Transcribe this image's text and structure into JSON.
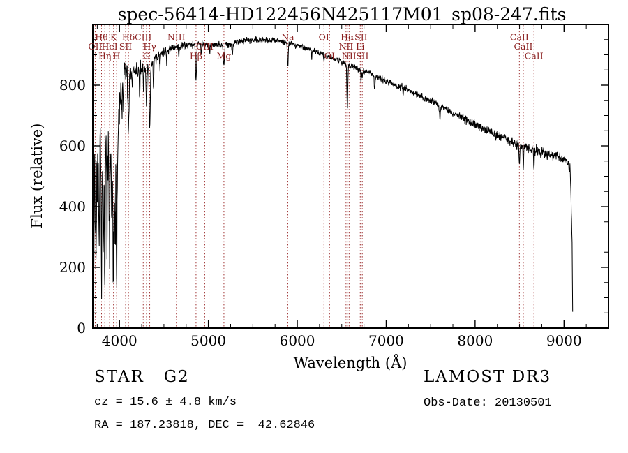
{
  "annotations": {
    "class_label": "STAR   G2",
    "survey": "LAMOST DR3",
    "cz": "cz = 15.6 ± 4.8 km/s",
    "obs_date": "Obs-Date: 20130501",
    "ra_dec": "RA = 187.23818, DEC =  42.62846"
  },
  "colors": {
    "background": "#ffffff",
    "spectrum": "#000000",
    "axis": "#000000",
    "line_marker": "#9b2b2b",
    "line_label": "#8b2020"
  },
  "chart_data": {
    "type": "line",
    "title": "spec-56414-HD122456N425117M01_sp08-247.fits",
    "xlabel": "Wavelength (Å)",
    "ylabel": "Flux (relative)",
    "xlim": [
      3700,
      9500
    ],
    "ylim": [
      0,
      1000
    ],
    "x_ticks": [
      4000,
      5000,
      6000,
      7000,
      8000,
      9000
    ],
    "y_ticks": [
      0,
      200,
      400,
      600,
      800
    ],
    "x_minor_step": 250,
    "y_minor_step": 50,
    "spectral_lines": [
      {
        "label": "OII",
        "wavelength": 3727,
        "row": 2
      },
      {
        "label": "Hθ",
        "wavelength": 3798,
        "row": 1
      },
      {
        "label": "Hη",
        "wavelength": 3835,
        "row": 3
      },
      {
        "label": "HeI",
        "wavelength": 3889,
        "row": 2
      },
      {
        "label": "K",
        "wavelength": 3933,
        "row": 1
      },
      {
        "label": "H",
        "wavelength": 3968,
        "row": 3
      },
      {
        "label": "SII",
        "wavelength": 4069,
        "row": 2
      },
      {
        "label": "Hδ",
        "wavelength": 4101,
        "row": 1
      },
      {
        "label": "CIII",
        "wavelength": 4267,
        "row": 1
      },
      {
        "label": "G",
        "wavelength": 4304,
        "row": 3
      },
      {
        "label": "Hγ",
        "wavelength": 4340,
        "row": 2
      },
      {
        "label": "NIII",
        "wavelength": 4640,
        "row": 1
      },
      {
        "label": "Hβ",
        "wavelength": 4861,
        "row": 3
      },
      {
        "label": "OIII",
        "wavelength": 4959,
        "row": 2
      },
      {
        "label": "",
        "wavelength": 5007,
        "row": 2
      },
      {
        "label": "Mg",
        "wavelength": 5175,
        "row": 3
      },
      {
        "label": "Na",
        "wavelength": 5893,
        "row": 1
      },
      {
        "label": "OI",
        "wavelength": 6300,
        "row": 1
      },
      {
        "label": "OI",
        "wavelength": 6363,
        "row": 3
      },
      {
        "label": "NII",
        "wavelength": 6548,
        "row": 2
      },
      {
        "label": "Hα",
        "wavelength": 6563,
        "row": 1
      },
      {
        "label": "NII",
        "wavelength": 6583,
        "row": 3
      },
      {
        "label": "Li",
        "wavelength": 6708,
        "row": 2
      },
      {
        "label": "SII",
        "wavelength": 6717,
        "row": 1
      },
      {
        "label": "SII",
        "wavelength": 6731,
        "row": 3
      },
      {
        "label": "CaII",
        "wavelength": 8498,
        "row": 1
      },
      {
        "label": "CaII",
        "wavelength": 8542,
        "row": 2
      },
      {
        "label": "CaII",
        "wavelength": 8662,
        "row": 3
      }
    ],
    "continuum": [
      [
        3700,
        480
      ],
      [
        3715,
        620
      ],
      [
        3730,
        640
      ],
      [
        3750,
        665
      ],
      [
        3770,
        650
      ],
      [
        3790,
        645
      ],
      [
        3810,
        635
      ],
      [
        3830,
        640
      ],
      [
        3850,
        650
      ],
      [
        3870,
        655
      ],
      [
        3890,
        660
      ],
      [
        3910,
        655
      ],
      [
        3930,
        650
      ],
      [
        3950,
        655
      ],
      [
        3970,
        665
      ],
      [
        3985,
        700
      ],
      [
        4000,
        790
      ],
      [
        4020,
        820
      ],
      [
        4040,
        835
      ],
      [
        4060,
        840
      ],
      [
        4090,
        850
      ],
      [
        4120,
        855
      ],
      [
        4160,
        850
      ],
      [
        4200,
        845
      ],
      [
        4240,
        855
      ],
      [
        4280,
        855
      ],
      [
        4320,
        860
      ],
      [
        4360,
        875
      ],
      [
        4400,
        885
      ],
      [
        4450,
        895
      ],
      [
        4500,
        905
      ],
      [
        4550,
        915
      ],
      [
        4600,
        920
      ],
      [
        4650,
        925
      ],
      [
        4700,
        928
      ],
      [
        4750,
        930
      ],
      [
        4800,
        932
      ],
      [
        4850,
        934
      ],
      [
        4900,
        936
      ],
      [
        4950,
        934
      ],
      [
        5000,
        932
      ],
      [
        5050,
        934
      ],
      [
        5100,
        936
      ],
      [
        5150,
        934
      ],
      [
        5200,
        933
      ],
      [
        5300,
        940
      ],
      [
        5400,
        946
      ],
      [
        5500,
        950
      ],
      [
        5600,
        948
      ],
      [
        5700,
        950
      ],
      [
        5800,
        946
      ],
      [
        5900,
        938
      ],
      [
        6000,
        930
      ],
      [
        6100,
        921
      ],
      [
        6200,
        912
      ],
      [
        6300,
        898
      ],
      [
        6400,
        888
      ],
      [
        6500,
        877
      ],
      [
        6600,
        862
      ],
      [
        6700,
        852
      ],
      [
        6800,
        842
      ],
      [
        6900,
        826
      ],
      [
        7000,
        812
      ],
      [
        7100,
        800
      ],
      [
        7200,
        790
      ],
      [
        7300,
        776
      ],
      [
        7400,
        762
      ],
      [
        7500,
        748
      ],
      [
        7600,
        732
      ],
      [
        7700,
        716
      ],
      [
        7800,
        700
      ],
      [
        7900,
        686
      ],
      [
        8000,
        670
      ],
      [
        8100,
        656
      ],
      [
        8200,
        646
      ],
      [
        8300,
        631
      ],
      [
        8400,
        616
      ],
      [
        8500,
        601
      ],
      [
        8600,
        592
      ],
      [
        8700,
        582
      ],
      [
        8800,
        572
      ],
      [
        8900,
        566
      ],
      [
        9000,
        556
      ],
      [
        9040,
        548
      ],
      [
        9070,
        520
      ],
      [
        9090,
        300
      ],
      [
        9098,
        10
      ]
    ],
    "absorption_features": [
      [
        3712,
        260,
        6
      ],
      [
        3734,
        300,
        7
      ],
      [
        3750,
        250,
        5
      ],
      [
        3770,
        320,
        6
      ],
      [
        3798,
        330,
        7
      ],
      [
        3820,
        280,
        5
      ],
      [
        3835,
        340,
        7
      ],
      [
        3860,
        260,
        5
      ],
      [
        3889,
        330,
        7
      ],
      [
        3912,
        250,
        5
      ],
      [
        3933,
        430,
        8
      ],
      [
        3950,
        260,
        5
      ],
      [
        3968,
        420,
        8
      ],
      [
        4026,
        120,
        5
      ],
      [
        4045,
        90,
        4
      ],
      [
        4101,
        210,
        9
      ],
      [
        4144,
        80,
        5
      ],
      [
        4227,
        90,
        5
      ],
      [
        4271,
        70,
        5
      ],
      [
        4304,
        110,
        8
      ],
      [
        4340,
        200,
        9
      ],
      [
        4383,
        90,
        5
      ],
      [
        4455,
        50,
        4
      ],
      [
        4531,
        45,
        4
      ],
      [
        4668,
        40,
        4
      ],
      [
        4861,
        130,
        8
      ],
      [
        4920,
        35,
        4
      ],
      [
        5015,
        30,
        4
      ],
      [
        5175,
        70,
        9
      ],
      [
        5270,
        40,
        6
      ],
      [
        5893,
        75,
        7
      ],
      [
        6163,
        25,
        4
      ],
      [
        6300,
        20,
        4
      ],
      [
        6563,
        145,
        7
      ],
      [
        6717,
        35,
        5
      ],
      [
        6731,
        30,
        5
      ],
      [
        6870,
        45,
        6
      ],
      [
        7190,
        25,
        5
      ],
      [
        7605,
        40,
        7
      ],
      [
        8230,
        25,
        5
      ],
      [
        8498,
        60,
        5
      ],
      [
        8542,
        80,
        5
      ],
      [
        8662,
        70,
        5
      ]
    ],
    "noise_profile": [
      [
        3700,
        150
      ],
      [
        3750,
        140
      ],
      [
        3800,
        135
      ],
      [
        3850,
        130
      ],
      [
        3900,
        125
      ],
      [
        3950,
        115
      ],
      [
        3990,
        80
      ],
      [
        4010,
        45
      ],
      [
        4050,
        30
      ],
      [
        4100,
        25
      ],
      [
        4200,
        20
      ],
      [
        4300,
        16
      ],
      [
        4450,
        12
      ],
      [
        4600,
        10
      ],
      [
        4800,
        9
      ],
      [
        5000,
        8
      ],
      [
        5500,
        7
      ],
      [
        6000,
        7
      ],
      [
        6500,
        7
      ],
      [
        7000,
        8
      ],
      [
        7500,
        9
      ],
      [
        8000,
        10
      ],
      [
        8500,
        11
      ],
      [
        8900,
        13
      ],
      [
        9050,
        14
      ],
      [
        9100,
        15
      ]
    ],
    "noise_seed": 1234567,
    "sample_step": 3,
    "wl_range": [
      3700,
      9098
    ]
  }
}
